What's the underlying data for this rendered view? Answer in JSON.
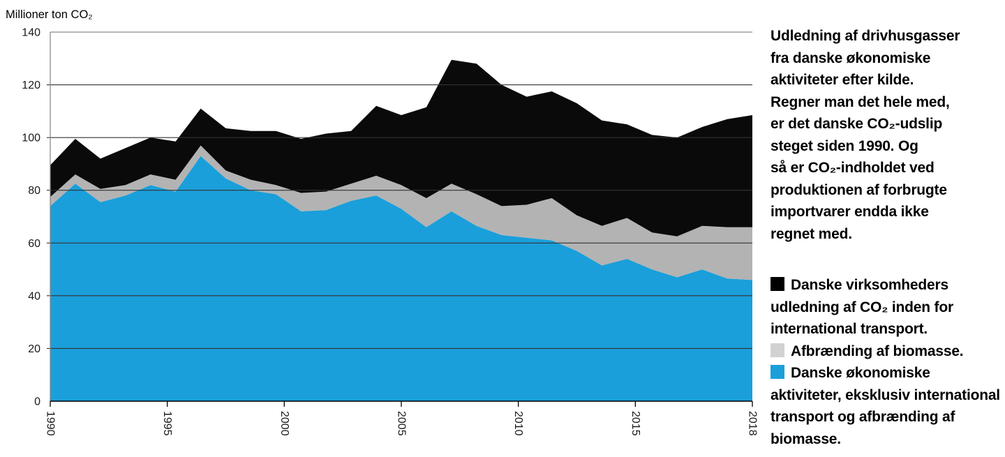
{
  "page": {
    "background": "#ffffff"
  },
  "chart": {
    "y_axis_title": "Millioner ton CO₂",
    "y_ticks": [
      0,
      20,
      40,
      60,
      80,
      100,
      120,
      140
    ],
    "x_tick_labels": [
      "1990",
      "1995",
      "2000",
      "2005",
      "2010",
      "2015",
      "2018"
    ],
    "colors": {
      "grid": "#333333",
      "frame": "#8c8c8c",
      "axis": "#000000",
      "tick_text": "#1a1a1a"
    }
  },
  "chart_data": {
    "type": "area",
    "stacked": true,
    "title": "",
    "xlabel": "",
    "ylabel": "Millioner ton CO₂",
    "ylim": [
      0,
      140
    ],
    "grid": true,
    "legend_position": "right-panel",
    "x": [
      1990,
      1991,
      1992,
      1993,
      1994,
      1995,
      1996,
      1997,
      1998,
      1999,
      2000,
      2001,
      2002,
      2003,
      2004,
      2005,
      2006,
      2007,
      2008,
      2009,
      2010,
      2011,
      2012,
      2013,
      2014,
      2015,
      2016,
      2017,
      2018
    ],
    "series": [
      {
        "name": "Danske økonomiske aktiviteter, eksklusiv international transport og afbrænding af biomasse.",
        "color": "#1a9fda",
        "values": [
          74,
          82.5,
          75.5,
          78,
          82,
          79.5,
          93,
          84.5,
          80,
          78.5,
          72,
          72.5,
          76,
          78,
          73,
          66,
          72,
          66.5,
          63,
          62,
          61,
          57,
          51.5,
          54,
          50,
          47,
          50,
          46.5,
          46
        ]
      },
      {
        "name": "Afbrænding af biomasse.",
        "color": "#b3b3b3",
        "values": [
          3.5,
          3.5,
          5,
          4,
          4,
          4.5,
          4,
          3,
          4,
          3.5,
          7,
          7,
          6.5,
          7.5,
          9,
          11,
          10.5,
          12,
          11,
          12.5,
          16,
          13.5,
          15,
          15.5,
          14,
          15.5,
          16.5,
          19.5,
          20
        ]
      },
      {
        "name": "Danske virksomheders udledning af CO₂ inden for international transport.",
        "color": "#0a0a0a",
        "values": [
          12,
          13.5,
          11.5,
          14,
          14,
          14.5,
          14,
          16,
          18.5,
          20.5,
          20.5,
          22,
          20,
          26.5,
          26.5,
          34.5,
          47,
          49.5,
          46,
          41,
          40.5,
          42.5,
          40,
          35.5,
          37,
          37.5,
          37.5,
          41,
          42.5
        ]
      }
    ]
  },
  "panel": {
    "intro": "Udledning af drivhusgasser\nfra danske økonomiske\naktiviteter efter kilde.\nRegner man det hele med,\ner det danske CO₂-udslip\nsteget siden 1990. Og\nså er CO₂-indholdet ved\nproduktionen af forbrugte\nimportvarer endda ikke\nregnet med.",
    "legend": [
      {
        "label": "Danske virksomheders udledning af CO₂ inden for international transport.",
        "swatch": "#000000"
      },
      {
        "label": "Afbrænding af biomasse.",
        "swatch": "#d2d2d2"
      },
      {
        "label": "Danske økonomiske aktiviteter, eksklusiv international transport og afbrænding af biomasse.",
        "swatch": "#1a9fda"
      }
    ]
  }
}
